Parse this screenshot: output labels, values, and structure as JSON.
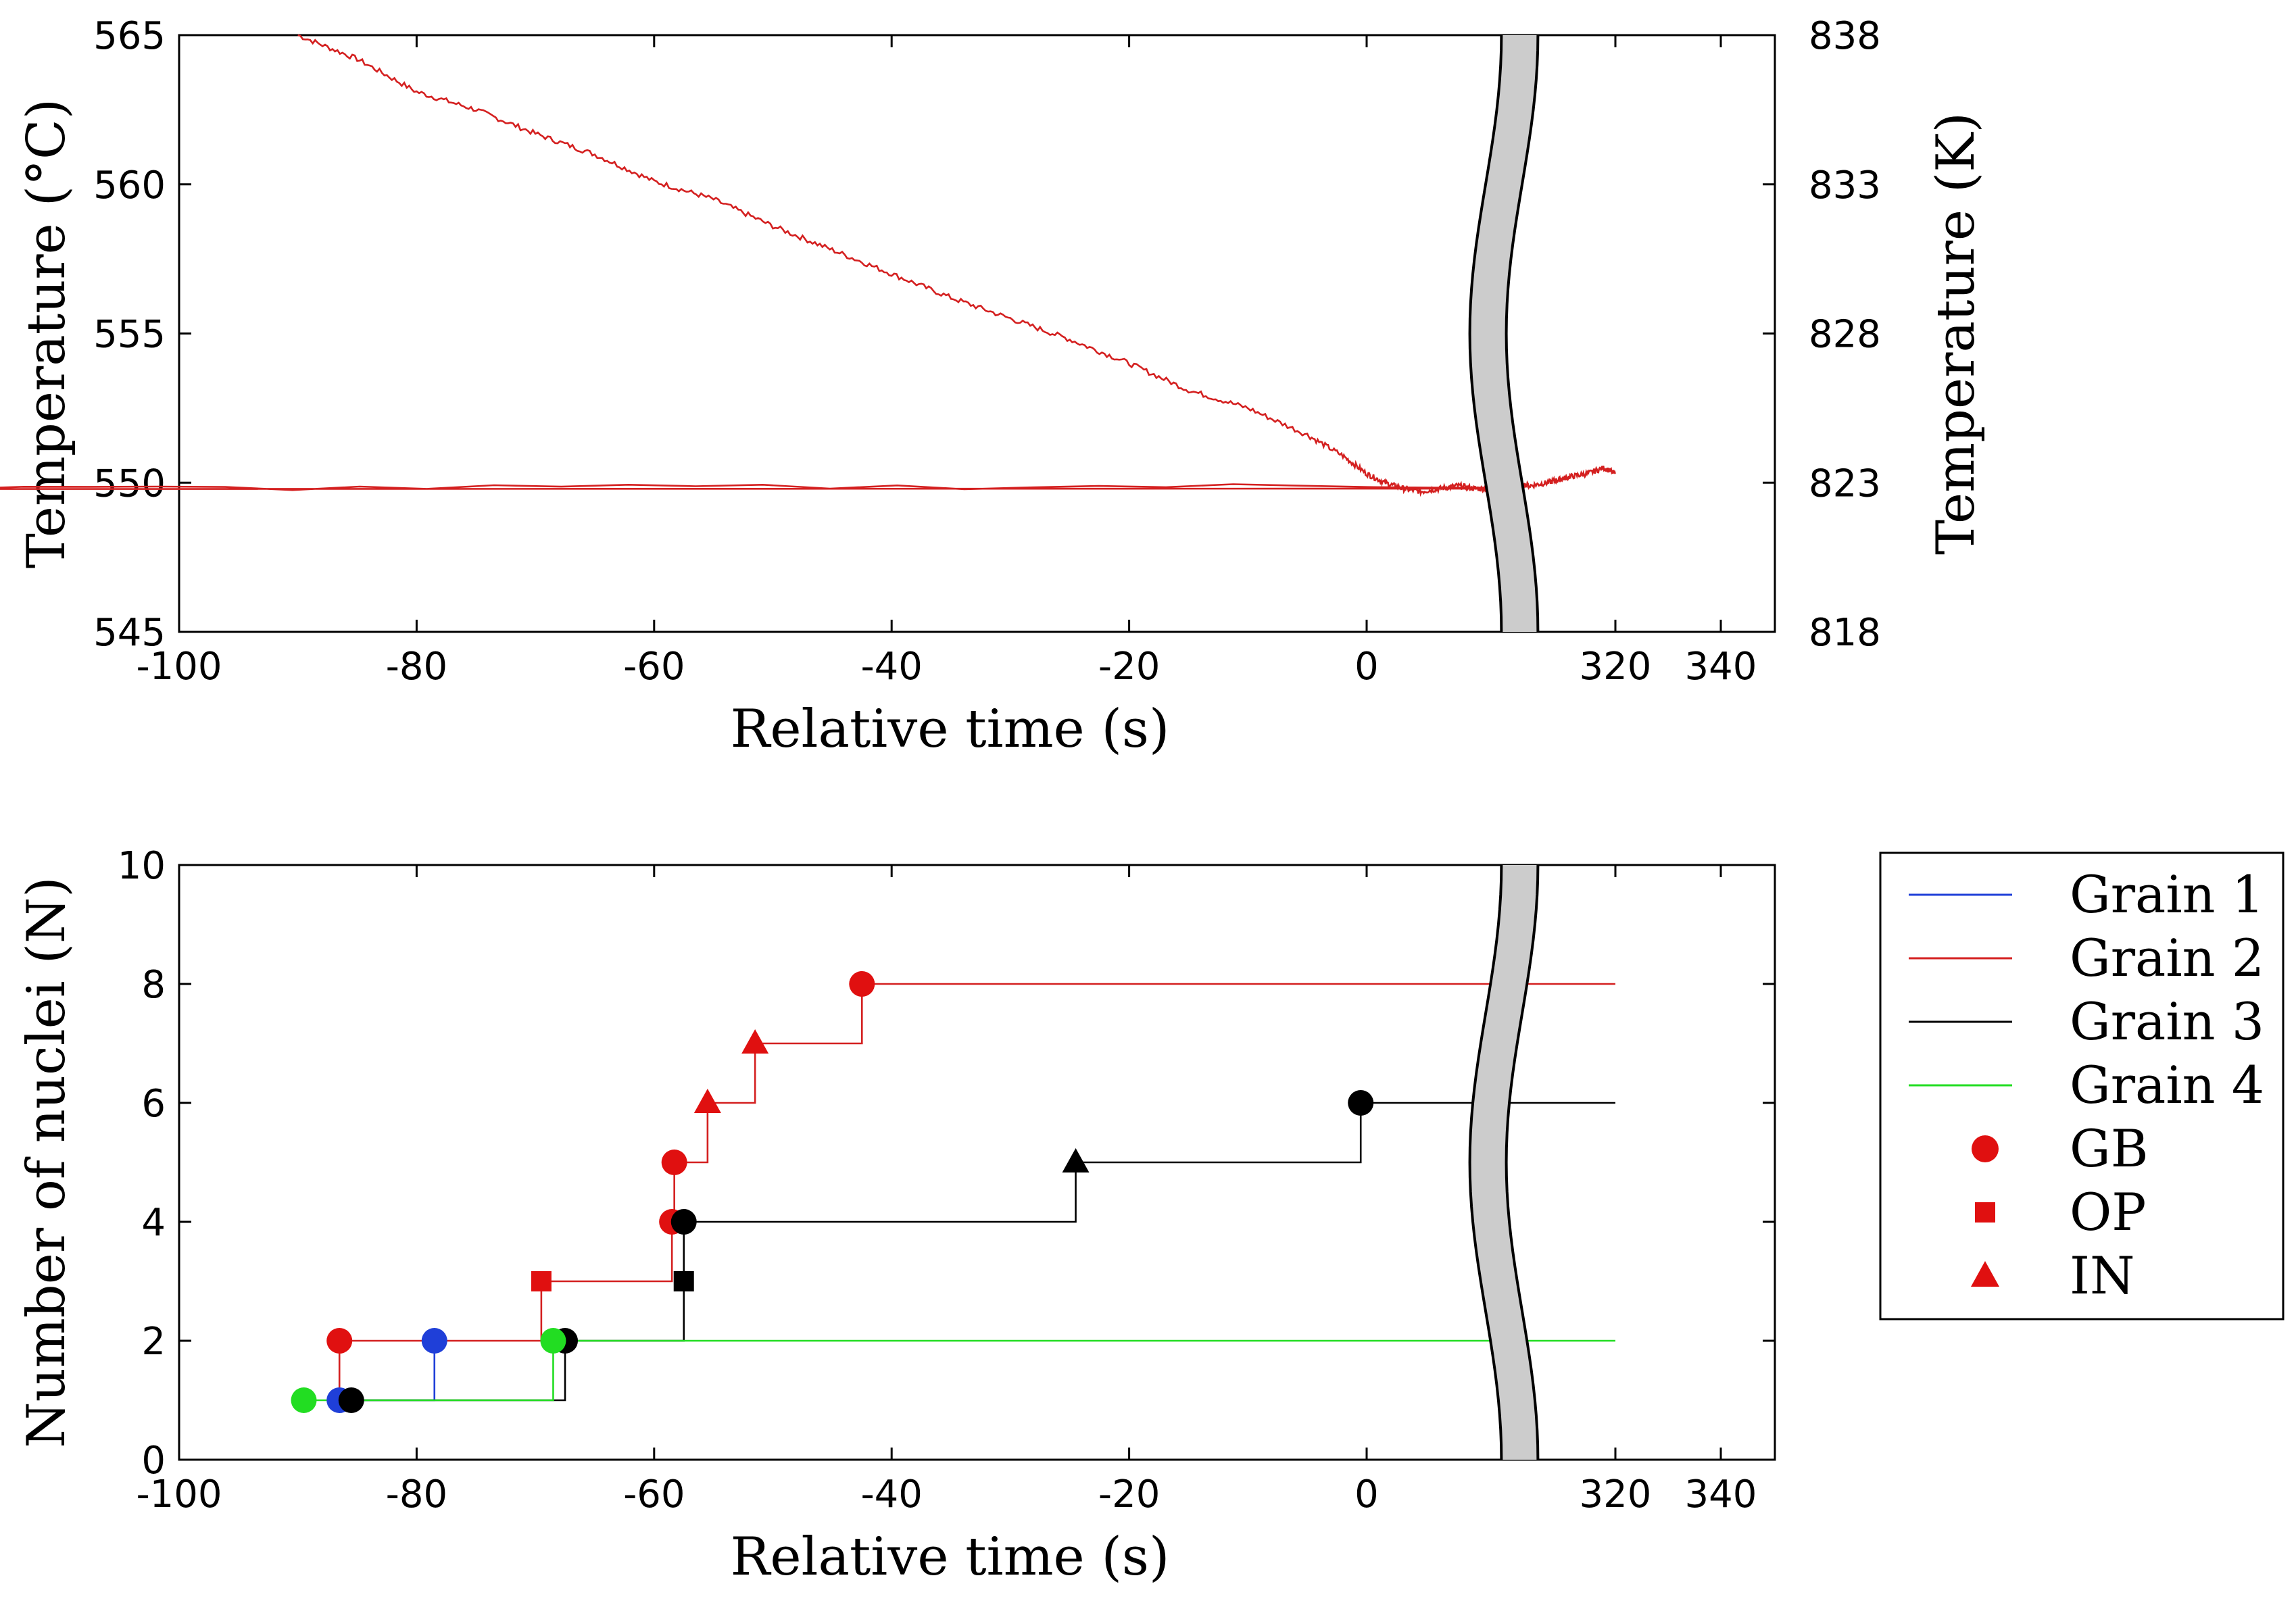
{
  "chart_data": [
    {
      "type": "line",
      "panel": "top",
      "xlabel": "Relative time (s)",
      "ylabel": "Temperature (°C)",
      "ylabel_right": "Temperature (K)",
      "xlim": [
        -100,
        345
      ],
      "axis_break_after": 0,
      "ylim": [
        545,
        565
      ],
      "x_ticks": [
        {
          "value": -100,
          "label": "-100"
        },
        {
          "value": -80,
          "label": "-80"
        },
        {
          "value": -60,
          "label": "-60"
        },
        {
          "value": -40,
          "label": "-40"
        },
        {
          "value": -20,
          "label": "-20"
        },
        {
          "value": 0,
          "label": "0"
        },
        {
          "value": 320,
          "label": "320"
        },
        {
          "value": 340,
          "label": "340"
        }
      ],
      "y_ticks": [
        {
          "value": 545,
          "label": "545"
        },
        {
          "value": 550,
          "label": "550"
        },
        {
          "value": 555,
          "label": "555"
        },
        {
          "value": 560,
          "label": "560"
        },
        {
          "value": 565,
          "label": "565"
        }
      ],
      "y_ticks_right": [
        {
          "value": 545,
          "label": "818"
        },
        {
          "value": 550,
          "label": "823"
        },
        {
          "value": 555,
          "label": "828"
        },
        {
          "value": 560,
          "label": "833"
        },
        {
          "value": 565,
          "label": "838"
        }
      ],
      "series": [
        {
          "name": "Temperature",
          "color": "#d42020",
          "x": [
            -90,
            -85,
            -80,
            -75,
            -70,
            -65,
            -60,
            -55,
            -50,
            -45,
            -40,
            -35,
            -30,
            -25,
            -20,
            -15,
            -10,
            -5,
            -2,
            0,
            2,
            4,
            6,
            8,
            10,
            12,
            14,
            16,
            300,
            302,
            305,
            308,
            310,
            312,
            315,
            318,
            320
          ],
          "y": [
            565.0,
            564.2,
            563.1,
            562.5,
            561.7,
            561.0,
            560.1,
            559.5,
            558.6,
            557.8,
            557.0,
            556.2,
            555.5,
            554.8,
            554.0,
            553.1,
            552.5,
            551.6,
            550.9,
            550.3,
            550.0,
            549.8,
            549.7,
            549.8,
            549.9,
            549.8,
            549.8,
            549.8,
            549.9,
            550.0,
            549.9,
            550.0,
            550.1,
            550.2,
            550.3,
            550.5,
            550.3
          ]
        }
      ]
    },
    {
      "type": "line",
      "panel": "bottom",
      "xlabel": "Relative time (s)",
      "ylabel": "Number of nuclei (N)",
      "xlim": [
        -100,
        345
      ],
      "axis_break_after": 0,
      "ylim": [
        0,
        10
      ],
      "x_ticks": [
        {
          "value": -100,
          "label": "-100"
        },
        {
          "value": -80,
          "label": "-80"
        },
        {
          "value": -60,
          "label": "-60"
        },
        {
          "value": -40,
          "label": "-40"
        },
        {
          "value": -20,
          "label": "-20"
        },
        {
          "value": 0,
          "label": "0"
        },
        {
          "value": 320,
          "label": "320"
        },
        {
          "value": 340,
          "label": "340"
        }
      ],
      "y_ticks": [
        {
          "value": 0,
          "label": "0"
        },
        {
          "value": 2,
          "label": "2"
        },
        {
          "value": 4,
          "label": "4"
        },
        {
          "value": 6,
          "label": "6"
        },
        {
          "value": 8,
          "label": "8"
        },
        {
          "value": 10,
          "label": "10"
        }
      ],
      "series": [
        {
          "name": "Grain 1",
          "color": "#1f3fd8",
          "steps": [
            [
              -86.5,
              1
            ],
            [
              -78.5,
              2
            ]
          ],
          "end": -78.5,
          "events": [
            {
              "x": -86.5,
              "y": 1,
              "site": "GB"
            },
            {
              "x": -78.5,
              "y": 2,
              "site": "GB"
            }
          ]
        },
        {
          "name": "Grain 2",
          "color": "#d42020",
          "steps": [
            [
              -86.5,
              1
            ],
            [
              -86.5,
              2
            ],
            [
              -69.5,
              3
            ],
            [
              -58.5,
              4
            ],
            [
              -58.3,
              5
            ],
            [
              -55.5,
              6
            ],
            [
              -51.5,
              7
            ],
            [
              -42.5,
              8
            ]
          ],
          "end": 320,
          "events": [
            {
              "x": -86.5,
              "y": 2,
              "site": "GB"
            },
            {
              "x": -69.5,
              "y": 3,
              "site": "OP"
            },
            {
              "x": -58.5,
              "y": 4,
              "site": "GB"
            },
            {
              "x": -58.3,
              "y": 5,
              "site": "GB"
            },
            {
              "x": -55.5,
              "y": 6,
              "site": "IN"
            },
            {
              "x": -51.5,
              "y": 7,
              "site": "IN"
            },
            {
              "x": -42.5,
              "y": 8,
              "site": "GB"
            }
          ]
        },
        {
          "name": "Grain 3",
          "color": "#000000",
          "steps": [
            [
              -85.5,
              1
            ],
            [
              -67.5,
              2
            ],
            [
              -57.5,
              3
            ],
            [
              -57.5,
              4
            ],
            [
              -24.5,
              5
            ],
            [
              -0.5,
              6
            ]
          ],
          "end": 320,
          "events": [
            {
              "x": -85.5,
              "y": 1,
              "site": "GB"
            },
            {
              "x": -67.5,
              "y": 2,
              "site": "GB"
            },
            {
              "x": -57.5,
              "y": 3,
              "site": "OP"
            },
            {
              "x": -57.5,
              "y": 4,
              "site": "GB"
            },
            {
              "x": -24.5,
              "y": 5,
              "site": "IN"
            },
            {
              "x": -0.5,
              "y": 6,
              "site": "GB"
            }
          ]
        },
        {
          "name": "Grain 4",
          "color": "#22dd22",
          "steps": [
            [
              -89.5,
              1
            ],
            [
              -68.5,
              2
            ]
          ],
          "end": 320,
          "events": [
            {
              "x": -89.5,
              "y": 1,
              "site": "GB"
            },
            {
              "x": -68.5,
              "y": 2,
              "site": "GB"
            }
          ]
        }
      ],
      "legend": {
        "placement": "right",
        "lines": [
          {
            "label": "Grain 1",
            "color": "#1f3fd8"
          },
          {
            "label": "Grain 2",
            "color": "#d42020"
          },
          {
            "label": "Grain 3",
            "color": "#000000"
          },
          {
            "label": "Grain 4",
            "color": "#22dd22"
          }
        ],
        "markers": [
          {
            "label": "GB",
            "shape": "circle",
            "color": "#e01010"
          },
          {
            "label": "OP",
            "shape": "square",
            "color": "#e01010"
          },
          {
            "label": "IN",
            "shape": "triangle",
            "color": "#e01010"
          }
        ]
      }
    }
  ]
}
